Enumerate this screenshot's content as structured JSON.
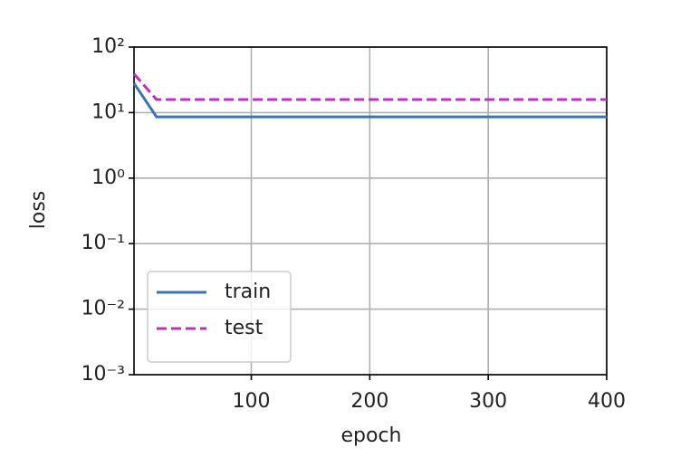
{
  "chart_data": {
    "type": "line",
    "x_label": "epoch",
    "y_label": "loss",
    "x": [
      1,
      20,
      40,
      60,
      80,
      100,
      120,
      140,
      160,
      180,
      200,
      220,
      240,
      260,
      280,
      300,
      320,
      340,
      360,
      380,
      400
    ],
    "series": [
      {
        "name": "train",
        "color": "#3a75b0",
        "dash": "solid",
        "values": [
          28,
          8.6,
          8.6,
          8.6,
          8.6,
          8.6,
          8.6,
          8.6,
          8.6,
          8.6,
          8.6,
          8.6,
          8.6,
          8.6,
          8.6,
          8.6,
          8.6,
          8.6,
          8.6,
          8.6,
          8.6
        ]
      },
      {
        "name": "test",
        "color": "#bf2fbf",
        "dash": "dashed",
        "values": [
          39,
          15.8,
          15.8,
          15.8,
          15.8,
          15.8,
          15.8,
          15.8,
          15.8,
          15.8,
          15.8,
          15.8,
          15.8,
          15.8,
          15.8,
          15.8,
          15.8,
          15.8,
          15.8,
          15.8,
          15.8
        ]
      }
    ],
    "xlim": [
      1,
      400
    ],
    "xticks": [
      100,
      200,
      300,
      400
    ],
    "ylim": [
      0.001,
      100
    ],
    "y_scale": "log",
    "yticks": [
      {
        "value": 0.001,
        "label": "10⁻³"
      },
      {
        "value": 0.01,
        "label": "10⁻²"
      },
      {
        "value": 0.1,
        "label": "10⁻¹"
      },
      {
        "value": 1,
        "label": "10⁰"
      },
      {
        "value": 10,
        "label": "10¹"
      },
      {
        "value": 100,
        "label": "10²"
      }
    ],
    "grid": true,
    "legend": "lower left"
  }
}
